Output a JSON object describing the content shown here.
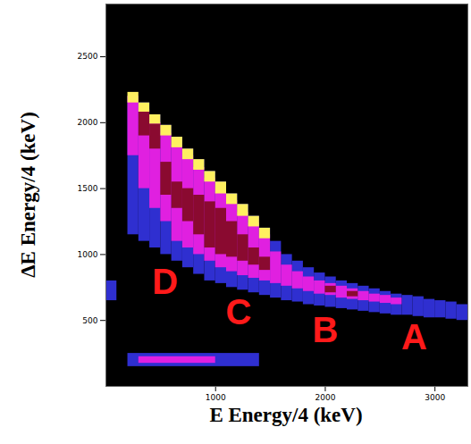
{
  "chart_data": {
    "type": "heatmap",
    "x_label": "E Energy/4 (keV)",
    "y_label": "ΔE Energy/4 (keV)",
    "xlim": [
      0,
      3300
    ],
    "ylim": [
      0,
      2900
    ],
    "xticks": [
      1000,
      2000,
      3000
    ],
    "yticks": [
      500,
      1000,
      1500,
      2000,
      2500
    ],
    "levels": [
      1,
      2,
      3,
      4
    ],
    "colors": [
      "#2f2fd0",
      "#e020e0",
      "#8a0a30",
      "#fff060"
    ],
    "cells": [
      [
        0,
        100,
        650,
        800,
        1
      ],
      [
        200,
        1400,
        150,
        250,
        1
      ],
      [
        300,
        1000,
        175,
        225,
        2
      ],
      [
        200,
        300,
        1150,
        2200,
        1
      ],
      [
        200,
        300,
        1750,
        2200,
        2
      ],
      [
        200,
        300,
        2150,
        2230,
        4
      ],
      [
        300,
        400,
        1100,
        2150,
        1
      ],
      [
        300,
        400,
        1500,
        2100,
        2
      ],
      [
        300,
        400,
        1900,
        2080,
        3
      ],
      [
        300,
        400,
        2080,
        2150,
        4
      ],
      [
        400,
        500,
        1050,
        2060,
        1
      ],
      [
        400,
        500,
        1350,
        2000,
        2
      ],
      [
        400,
        500,
        1800,
        1990,
        3
      ],
      [
        400,
        500,
        1990,
        2060,
        4
      ],
      [
        500,
        600,
        1000,
        1980,
        1
      ],
      [
        500,
        600,
        1250,
        1920,
        2
      ],
      [
        500,
        600,
        1450,
        1700,
        3
      ],
      [
        500,
        600,
        1900,
        1980,
        4
      ],
      [
        600,
        700,
        950,
        1890,
        1
      ],
      [
        600,
        700,
        1100,
        1830,
        2
      ],
      [
        600,
        700,
        1350,
        1550,
        3
      ],
      [
        600,
        700,
        1810,
        1890,
        4
      ],
      [
        700,
        800,
        900,
        1800,
        1
      ],
      [
        700,
        800,
        1050,
        1750,
        2
      ],
      [
        700,
        800,
        1250,
        1500,
        3
      ],
      [
        700,
        800,
        1720,
        1800,
        4
      ],
      [
        800,
        900,
        850,
        1720,
        1
      ],
      [
        800,
        900,
        1000,
        1660,
        2
      ],
      [
        800,
        900,
        1150,
        1450,
        3
      ],
      [
        800,
        900,
        1640,
        1720,
        4
      ],
      [
        900,
        1000,
        800,
        1630,
        1
      ],
      [
        900,
        1000,
        950,
        1580,
        2
      ],
      [
        900,
        1000,
        1050,
        1400,
        3
      ],
      [
        900,
        1000,
        1550,
        1630,
        4
      ],
      [
        1000,
        1100,
        780,
        1550,
        1
      ],
      [
        1000,
        1100,
        900,
        1500,
        2
      ],
      [
        1000,
        1100,
        1000,
        1350,
        3
      ],
      [
        1000,
        1100,
        1460,
        1550,
        4
      ],
      [
        1100,
        1200,
        750,
        1460,
        1
      ],
      [
        1100,
        1200,
        870,
        1410,
        2
      ],
      [
        1100,
        1200,
        980,
        1250,
        3
      ],
      [
        1100,
        1200,
        1380,
        1460,
        4
      ],
      [
        1200,
        1300,
        730,
        1380,
        1
      ],
      [
        1200,
        1300,
        840,
        1320,
        2
      ],
      [
        1200,
        1300,
        950,
        1150,
        3
      ],
      [
        1200,
        1300,
        1290,
        1380,
        4
      ],
      [
        1300,
        1400,
        710,
        1290,
        1
      ],
      [
        1300,
        1400,
        820,
        1240,
        2
      ],
      [
        1300,
        1400,
        920,
        1050,
        3
      ],
      [
        1300,
        1400,
        1210,
        1290,
        4
      ],
      [
        1400,
        1500,
        690,
        1200,
        1
      ],
      [
        1400,
        1500,
        800,
        1150,
        2
      ],
      [
        1400,
        1500,
        880,
        980,
        3
      ],
      [
        1400,
        1500,
        1120,
        1200,
        4
      ],
      [
        1500,
        1600,
        670,
        1100,
        1
      ],
      [
        1500,
        1600,
        780,
        1020,
        2
      ],
      [
        1600,
        1700,
        650,
        1000,
        1
      ],
      [
        1600,
        1700,
        760,
        920,
        2
      ],
      [
        1700,
        1800,
        640,
        950,
        1
      ],
      [
        1700,
        1800,
        740,
        870,
        2
      ],
      [
        1800,
        1900,
        620,
        900,
        1
      ],
      [
        1800,
        1900,
        720,
        830,
        2
      ],
      [
        1900,
        2000,
        610,
        860,
        1
      ],
      [
        1900,
        2000,
        700,
        800,
        2
      ],
      [
        2000,
        2100,
        600,
        830,
        1
      ],
      [
        2000,
        2100,
        690,
        780,
        2
      ],
      [
        2000,
        2100,
        710,
        760,
        3
      ],
      [
        2100,
        2200,
        590,
        800,
        1
      ],
      [
        2100,
        2200,
        670,
        760,
        2
      ],
      [
        2200,
        2300,
        580,
        780,
        1
      ],
      [
        2200,
        2300,
        660,
        740,
        2
      ],
      [
        2200,
        2300,
        680,
        720,
        3
      ],
      [
        2300,
        2400,
        570,
        760,
        1
      ],
      [
        2300,
        2400,
        650,
        720,
        2
      ],
      [
        2400,
        2500,
        560,
        740,
        1
      ],
      [
        2400,
        2500,
        640,
        700,
        2
      ],
      [
        2500,
        2600,
        550,
        720,
        1
      ],
      [
        2500,
        2600,
        630,
        690,
        2
      ],
      [
        2600,
        2700,
        540,
        700,
        1
      ],
      [
        2600,
        2700,
        620,
        670,
        2
      ],
      [
        2700,
        2800,
        540,
        690,
        1
      ],
      [
        2800,
        2900,
        530,
        680,
        1
      ],
      [
        2900,
        3000,
        520,
        660,
        1
      ],
      [
        3000,
        3100,
        520,
        650,
        1
      ],
      [
        3100,
        3200,
        510,
        640,
        1
      ],
      [
        3200,
        3300,
        500,
        620,
        1
      ]
    ],
    "annotations": [
      {
        "text": "D",
        "x": 540,
        "y": 790
      },
      {
        "text": "C",
        "x": 1210,
        "y": 555
      },
      {
        "text": "B",
        "x": 2000,
        "y": 420
      },
      {
        "text": "A",
        "x": 2810,
        "y": 365
      }
    ]
  }
}
